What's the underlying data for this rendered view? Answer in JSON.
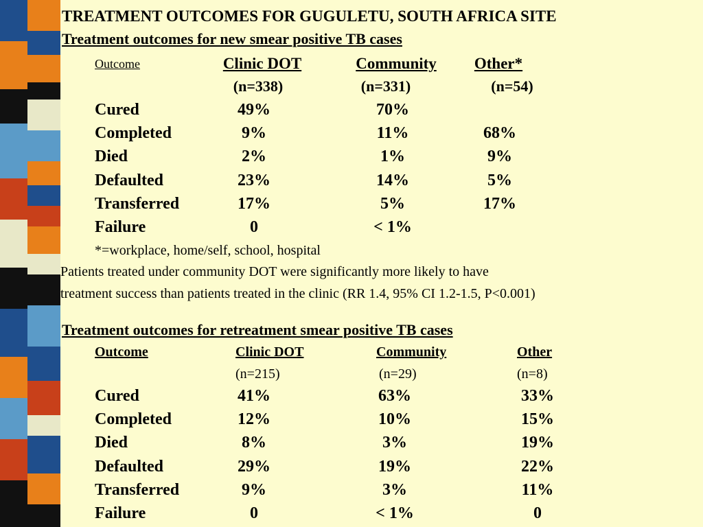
{
  "title": "TREATMENT OUTCOMES FOR GUGULETU, SOUTH AFRICA SITE",
  "sections": [
    {
      "heading": "Treatment outcomes for new smear positive TB cases",
      "columns": [
        "Outcome",
        "Clinic DOT",
        "Community",
        "Other*"
      ],
      "counts": [
        "(n=338)",
        "(n=331)",
        "(n=54)"
      ],
      "rows": [
        [
          "Cured",
          "49%",
          "70%",
          null
        ],
        [
          "Completed",
          "9%",
          "11%",
          "68%"
        ],
        [
          "Died",
          "2%",
          "1%",
          "9%"
        ],
        [
          "Defaulted",
          "23%",
          "14%",
          "5%"
        ],
        [
          "Transferred",
          "17%",
          "5%",
          "17%"
        ],
        [
          "Failure",
          "0",
          "< 1%",
          null
        ]
      ],
      "footnote": "*=workplace, home/self, school, hospital",
      "note": [
        "Patients treated under community DOT were significantly more likely to have",
        "treatment success than patients treated in the clinic (RR 1.4, 95% CI 1.2-1.5, P<0.001)"
      ]
    },
    {
      "heading": "Treatment outcomes for retreatment smear positive TB cases",
      "columns": [
        "Outcome",
        "Clinic DOT",
        "Community",
        "Other"
      ],
      "counts": [
        "(n=215)",
        "(n=29)",
        "(n=8)"
      ],
      "rows": [
        [
          "Cured",
          "41%",
          "63%",
          "33%"
        ],
        [
          "Completed",
          "12%",
          "10%",
          "15%"
        ],
        [
          "Died",
          "8%",
          "3%",
          "19%"
        ],
        [
          "Defaulted",
          "29%",
          "19%",
          "22%"
        ],
        [
          "Transferred",
          "9%",
          "3%",
          "11%"
        ],
        [
          "Failure",
          "0",
          "< 1%",
          "0"
        ]
      ]
    }
  ]
}
